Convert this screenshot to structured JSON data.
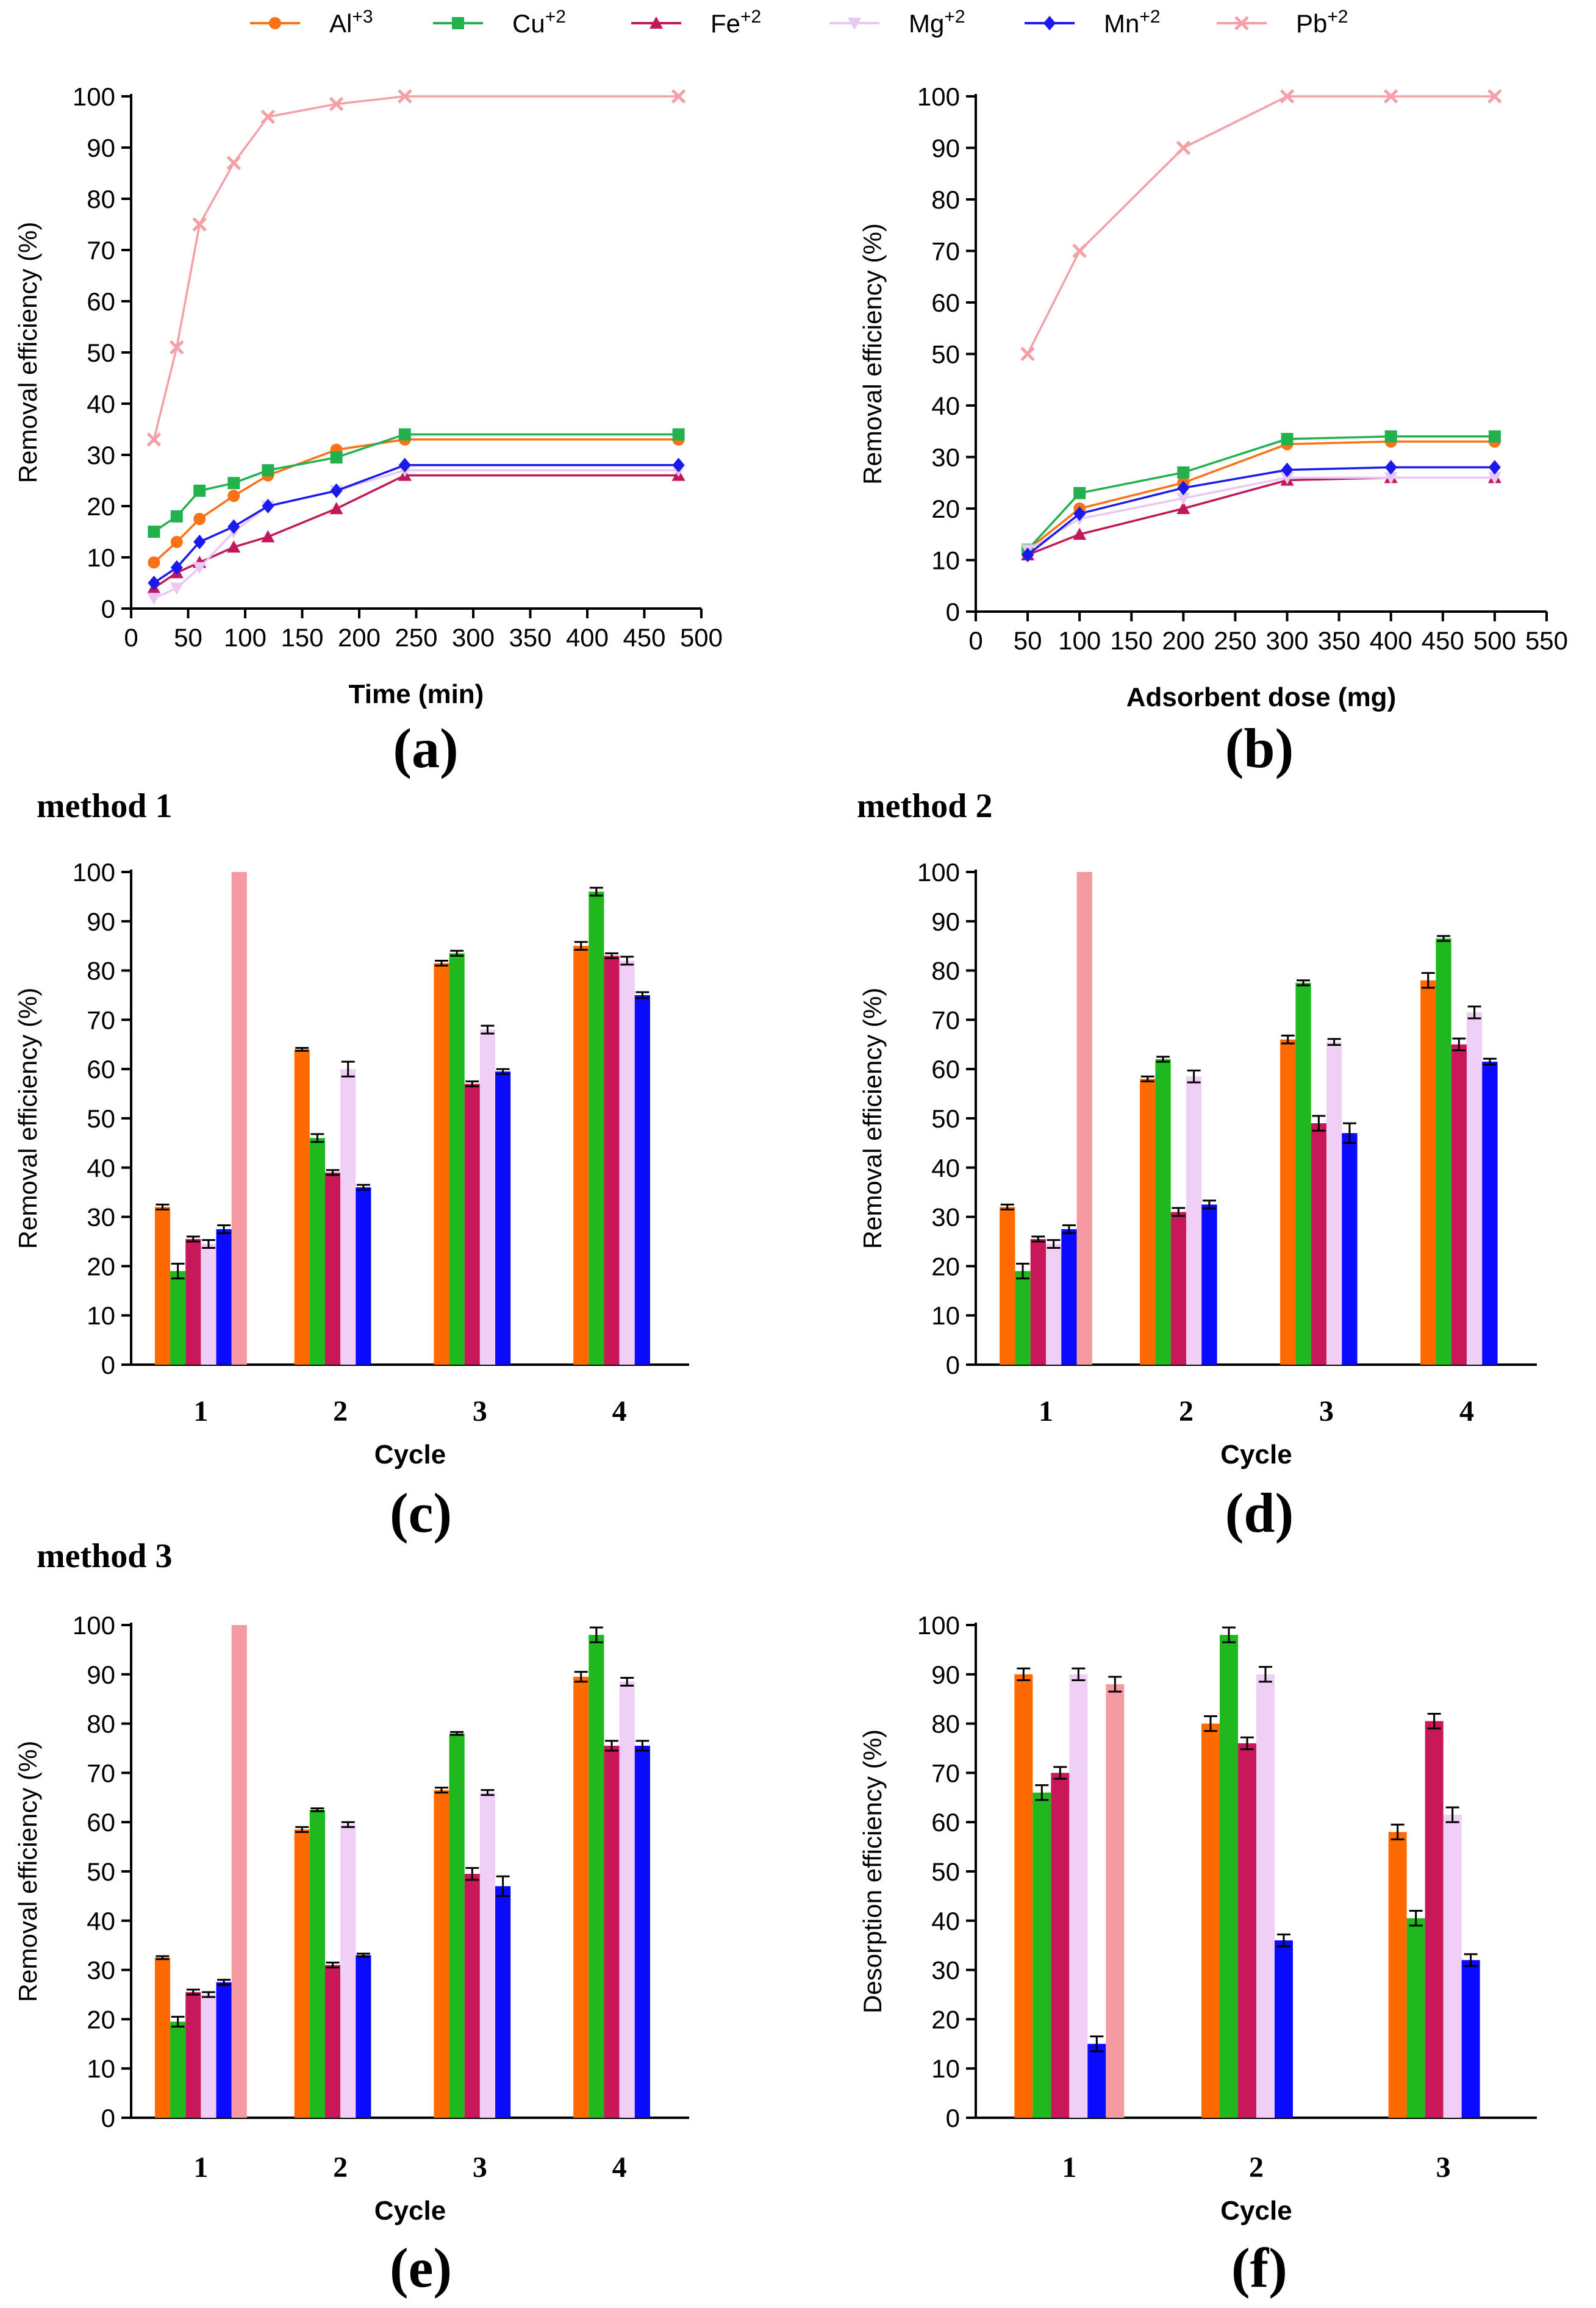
{
  "legend": [
    {
      "id": "al",
      "base": "Al",
      "sup": "+3",
      "color": "#f97316",
      "marker": "circle"
    },
    {
      "id": "cu",
      "base": "Cu",
      "sup": "+2",
      "color": "#22b14c",
      "marker": "square"
    },
    {
      "id": "fe",
      "base": "Fe",
      "sup": "+2",
      "color": "#c2185b",
      "marker": "triangle"
    },
    {
      "id": "mg",
      "base": "Mg",
      "sup": "+2",
      "color": "#e8c8f5",
      "marker": "triangle-down"
    },
    {
      "id": "mn",
      "base": "Mn",
      "sup": "+2",
      "color": "#1a1aee",
      "marker": "diamond"
    },
    {
      "id": "pb",
      "base": "Pb",
      "sup": "+2",
      "color": "#f4a0a6",
      "marker": "cross"
    }
  ],
  "bar_colors": {
    "al": "#ff6a00",
    "cu": "#1fb81f",
    "fe": "#c8185a",
    "mg": "#efcff6",
    "mn": "#0a0aff",
    "pb": "#f59aa2"
  },
  "chart_data": [
    {
      "id": "a",
      "type": "line",
      "panel_label": "(a)",
      "method_title": "",
      "xlabel": "Time (min)",
      "ylabel": "Removal efficiency (%)",
      "xlim": [
        0,
        500
      ],
      "ylim": [
        0,
        100
      ],
      "xticks": [
        0,
        50,
        100,
        150,
        200,
        250,
        300,
        350,
        400,
        450,
        500
      ],
      "yticks": [
        0,
        10,
        20,
        30,
        40,
        50,
        60,
        70,
        80,
        90,
        100
      ],
      "x": [
        20,
        40,
        60,
        90,
        120,
        180,
        240,
        480
      ],
      "series": [
        {
          "name": "Al+3",
          "key": "al",
          "values": [
            9,
            13,
            17.5,
            22,
            26,
            31,
            33,
            33
          ]
        },
        {
          "name": "Cu+2",
          "key": "cu",
          "values": [
            15,
            18,
            23,
            24.5,
            27,
            29.5,
            34,
            34
          ]
        },
        {
          "name": "Fe+2",
          "key": "fe",
          "values": [
            4,
            7,
            9,
            12,
            14,
            19.5,
            26,
            26
          ]
        },
        {
          "name": "Mg+2",
          "key": "mg",
          "values": [
            2,
            4,
            8,
            15,
            20,
            23,
            27,
            27
          ]
        },
        {
          "name": "Mn+2",
          "key": "mn",
          "values": [
            5,
            8,
            13,
            16,
            20,
            23,
            28,
            28
          ]
        },
        {
          "name": "Pb+2",
          "key": "pb",
          "values": [
            33,
            51,
            75,
            87,
            96,
            98.5,
            100,
            100
          ]
        }
      ]
    },
    {
      "id": "b",
      "type": "line",
      "panel_label": "(b)",
      "method_title": "",
      "xlabel": "Adsorbent dose (mg)",
      "ylabel": "Removal efficiency (%)",
      "xlim": [
        0,
        550
      ],
      "ylim": [
        0,
        100
      ],
      "xticks": [
        0,
        50,
        100,
        150,
        200,
        250,
        300,
        350,
        400,
        450,
        500,
        550
      ],
      "yticks": [
        0,
        10,
        20,
        30,
        40,
        50,
        60,
        70,
        80,
        90,
        100
      ],
      "x": [
        50,
        100,
        200,
        300,
        400,
        500
      ],
      "series": [
        {
          "name": "Al+3",
          "key": "al",
          "values": [
            12,
            20,
            25,
            32.5,
            33,
            33
          ]
        },
        {
          "name": "Cu+2",
          "key": "cu",
          "values": [
            12,
            23,
            27,
            33.5,
            34,
            34
          ]
        },
        {
          "name": "Fe+2",
          "key": "fe",
          "values": [
            11,
            15,
            20,
            25.5,
            26,
            26
          ]
        },
        {
          "name": "Mg+2",
          "key": "mg",
          "values": [
            12,
            18,
            22,
            26,
            26,
            26
          ]
        },
        {
          "name": "Mn+2",
          "key": "mn",
          "values": [
            11,
            19,
            24,
            27.5,
            28,
            28
          ]
        },
        {
          "name": "Pb+2",
          "key": "pb",
          "values": [
            50,
            70,
            90,
            100,
            100,
            100
          ]
        }
      ]
    },
    {
      "id": "c",
      "type": "bar",
      "panel_label": "(c)",
      "method_title": "method 1",
      "xlabel": "Cycle",
      "ylabel": "Removal efficiency (%)",
      "ylim": [
        0,
        100
      ],
      "yticks": [
        0,
        10,
        20,
        30,
        40,
        50,
        60,
        70,
        80,
        90,
        100
      ],
      "categories": [
        "1",
        "2",
        "3",
        "4"
      ],
      "series": [
        {
          "name": "Al+3",
          "key": "al",
          "values": [
            32,
            64,
            81.5,
            85
          ],
          "err": [
            0.5,
            0.3,
            0.5,
            0.8
          ]
        },
        {
          "name": "Cu+2",
          "key": "cu",
          "values": [
            19,
            46,
            83.5,
            96
          ],
          "err": [
            1.5,
            0.8,
            0.5,
            0.8
          ]
        },
        {
          "name": "Fe+2",
          "key": "fe",
          "values": [
            25.5,
            39,
            57,
            83
          ],
          "err": [
            0.5,
            0.5,
            0.5,
            0.5
          ]
        },
        {
          "name": "Mg+2",
          "key": "mg",
          "values": [
            24.5,
            60,
            68,
            82
          ],
          "err": [
            0.8,
            1.5,
            0.8,
            0.8
          ]
        },
        {
          "name": "Mn+2",
          "key": "mn",
          "values": [
            27.5,
            36,
            59.5,
            75
          ],
          "err": [
            0.8,
            0.5,
            0.5,
            0.6
          ]
        },
        {
          "name": "Pb+2",
          "key": "pb",
          "values": [
            100,
            null,
            null,
            null
          ],
          "err": [
            0,
            null,
            null,
            null
          ]
        }
      ]
    },
    {
      "id": "d",
      "type": "bar",
      "panel_label": "(d)",
      "method_title": "method 2",
      "xlabel": "Cycle",
      "ylabel": "Removal efficiency (%)",
      "ylim": [
        0,
        100
      ],
      "yticks": [
        0,
        10,
        20,
        30,
        40,
        50,
        60,
        70,
        80,
        90,
        100
      ],
      "categories": [
        "1",
        "2",
        "3",
        "4"
      ],
      "series": [
        {
          "name": "Al+3",
          "key": "al",
          "values": [
            32,
            58,
            66,
            78
          ],
          "err": [
            0.5,
            0.5,
            0.8,
            1.5
          ]
        },
        {
          "name": "Cu+2",
          "key": "cu",
          "values": [
            19,
            62,
            77.5,
            86.5
          ],
          "err": [
            1.5,
            0.5,
            0.5,
            0.5
          ]
        },
        {
          "name": "Fe+2",
          "key": "fe",
          "values": [
            25.5,
            31,
            49,
            65
          ],
          "err": [
            0.5,
            0.8,
            1.5,
            1.2
          ]
        },
        {
          "name": "Mg+2",
          "key": "mg",
          "values": [
            24.5,
            58.5,
            65.5,
            71.5
          ],
          "err": [
            0.8,
            1.2,
            0.6,
            1.2
          ]
        },
        {
          "name": "Mn+2",
          "key": "mn",
          "values": [
            27.5,
            32.5,
            47,
            61.5
          ],
          "err": [
            0.8,
            0.8,
            2,
            0.6
          ]
        },
        {
          "name": "Pb+2",
          "key": "pb",
          "values": [
            100,
            null,
            null,
            null
          ],
          "err": [
            0,
            null,
            null,
            null
          ]
        }
      ]
    },
    {
      "id": "e",
      "type": "bar",
      "panel_label": "(e)",
      "method_title": "method 3",
      "xlabel": "Cycle",
      "ylabel": "Removal efficiency (%)",
      "ylim": [
        0,
        100
      ],
      "yticks": [
        0,
        10,
        20,
        30,
        40,
        50,
        60,
        70,
        80,
        90,
        100
      ],
      "categories": [
        "1",
        "2",
        "3",
        "4"
      ],
      "series": [
        {
          "name": "Al+3",
          "key": "al",
          "values": [
            32.5,
            58.5,
            66.5,
            89.5
          ],
          "err": [
            0.3,
            0.5,
            0.5,
            1.0
          ]
        },
        {
          "name": "Cu+2",
          "key": "cu",
          "values": [
            19.5,
            62.5,
            78,
            98
          ],
          "err": [
            1.0,
            0.3,
            0.3,
            1.5
          ]
        },
        {
          "name": "Fe+2",
          "key": "fe",
          "values": [
            25.5,
            31,
            49.5,
            75.5
          ],
          "err": [
            0.5,
            0.5,
            1.2,
            1.0
          ]
        },
        {
          "name": "Mg+2",
          "key": "mg",
          "values": [
            25,
            59.5,
            66,
            88.5
          ],
          "err": [
            0.5,
            0.5,
            0.5,
            0.8
          ]
        },
        {
          "name": "Mn+2",
          "key": "mn",
          "values": [
            27.5,
            33,
            47,
            75.5
          ],
          "err": [
            0.5,
            0.3,
            2,
            1.0
          ]
        },
        {
          "name": "Pb+2",
          "key": "pb",
          "values": [
            100,
            null,
            null,
            null
          ],
          "err": [
            0,
            null,
            null,
            null
          ]
        }
      ]
    },
    {
      "id": "f",
      "type": "bar",
      "panel_label": "(f)",
      "method_title": "",
      "xlabel": "Cycle",
      "ylabel": "Desorption efficiency (%)",
      "ylim": [
        0,
        100
      ],
      "yticks": [
        0,
        10,
        20,
        30,
        40,
        50,
        60,
        70,
        80,
        90,
        100
      ],
      "categories": [
        "1",
        "2",
        "3"
      ],
      "series": [
        {
          "name": "Al+3",
          "key": "al",
          "values": [
            90,
            80,
            58
          ],
          "err": [
            1.2,
            1.5,
            1.5
          ]
        },
        {
          "name": "Cu+2",
          "key": "cu",
          "values": [
            66,
            98,
            40.5
          ],
          "err": [
            1.5,
            1.5,
            1.5
          ]
        },
        {
          "name": "Fe+2",
          "key": "fe",
          "values": [
            70,
            76,
            80.5
          ],
          "err": [
            1.2,
            1.2,
            1.5
          ]
        },
        {
          "name": "Mg+2",
          "key": "mg",
          "values": [
            90,
            90,
            61.5
          ],
          "err": [
            1.2,
            1.5,
            1.5
          ]
        },
        {
          "name": "Mn+2",
          "key": "mn",
          "values": [
            15,
            36,
            32
          ],
          "err": [
            1.5,
            1.2,
            1.2
          ]
        },
        {
          "name": "Pb+2",
          "key": "pb",
          "values": [
            88,
            null,
            null
          ],
          "err": [
            1.5,
            null,
            null
          ]
        }
      ]
    }
  ]
}
